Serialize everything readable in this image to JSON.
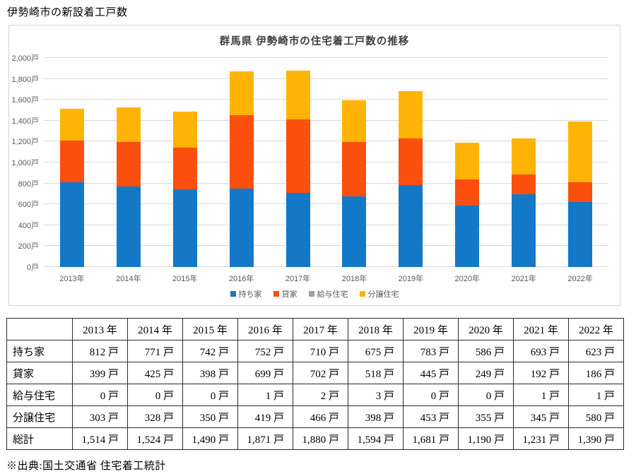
{
  "page": {
    "title": "伊勢崎市の新設着工戸数",
    "source_note": "※出典:国土交通省 住宅着工統計"
  },
  "chart": {
    "title": "群馬県 伊勢崎市の住宅着工戸数の推移",
    "colors": {
      "gridline": "#d9d9d9",
      "axis_text": "#595959",
      "title_text": "#404040"
    }
  },
  "chart_data": {
    "type": "bar",
    "stacked": true,
    "title": "群馬県 伊勢崎市の住宅着工戸数の推移",
    "categories": [
      "2013年",
      "2014年",
      "2015年",
      "2016年",
      "2017年",
      "2018年",
      "2019年",
      "2020年",
      "2021年",
      "2022年"
    ],
    "series": [
      {
        "name": "持ち家",
        "color": "#1478c8",
        "values": [
          812,
          771,
          742,
          752,
          710,
          675,
          783,
          586,
          693,
          623
        ]
      },
      {
        "name": "貸家",
        "color": "#fb4f0e",
        "values": [
          399,
          425,
          398,
          699,
          702,
          518,
          445,
          249,
          192,
          186
        ]
      },
      {
        "name": "給与住宅",
        "color": "#a0a0a0",
        "values": [
          0,
          0,
          0,
          1,
          2,
          3,
          0,
          0,
          1,
          1
        ]
      },
      {
        "name": "分譲住宅",
        "color": "#ffb405",
        "values": [
          303,
          328,
          350,
          419,
          466,
          398,
          453,
          355,
          345,
          580
        ]
      }
    ],
    "totals": [
      1514,
      1524,
      1490,
      1871,
      1880,
      1594,
      1681,
      1190,
      1231,
      1390
    ],
    "ylabel": "",
    "xlabel": "",
    "ylim": [
      0,
      2000
    ],
    "ytick_step": 200,
    "ytick_suffix": "戸",
    "grid": true,
    "legend_position": "bottom"
  },
  "table": {
    "header": [
      "",
      "2013 年",
      "2014 年",
      "2015 年",
      "2016 年",
      "2017 年",
      "2018 年",
      "2019 年",
      "2020 年",
      "2021 年",
      "2022 年"
    ],
    "rows": [
      {
        "label": "持ち家",
        "cells": [
          "812 戸",
          "771 戸",
          "742 戸",
          "752 戸",
          "710 戸",
          "675 戸",
          "783 戸",
          "586 戸",
          "693 戸",
          "623 戸"
        ]
      },
      {
        "label": "貸家",
        "cells": [
          "399 戸",
          "425 戸",
          "398 戸",
          "699 戸",
          "702 戸",
          "518 戸",
          "445 戸",
          "249 戸",
          "192 戸",
          "186 戸"
        ]
      },
      {
        "label": "給与住宅",
        "cells": [
          "0 戸",
          "0 戸",
          "0 戸",
          "1 戸",
          "2 戸",
          "3 戸",
          "0 戸",
          "0 戸",
          "1 戸",
          "1 戸"
        ]
      },
      {
        "label": "分譲住宅",
        "cells": [
          "303 戸",
          "328 戸",
          "350 戸",
          "419 戸",
          "466 戸",
          "398 戸",
          "453 戸",
          "355 戸",
          "345 戸",
          "580 戸"
        ]
      },
      {
        "label": "総計",
        "cells": [
          "1,514 戸",
          "1,524 戸",
          "1,490 戸",
          "1,871 戸",
          "1,880 戸",
          "1,594 戸",
          "1,681 戸",
          "1,190 戸",
          "1,231 戸",
          "1,390 戸"
        ]
      }
    ]
  }
}
